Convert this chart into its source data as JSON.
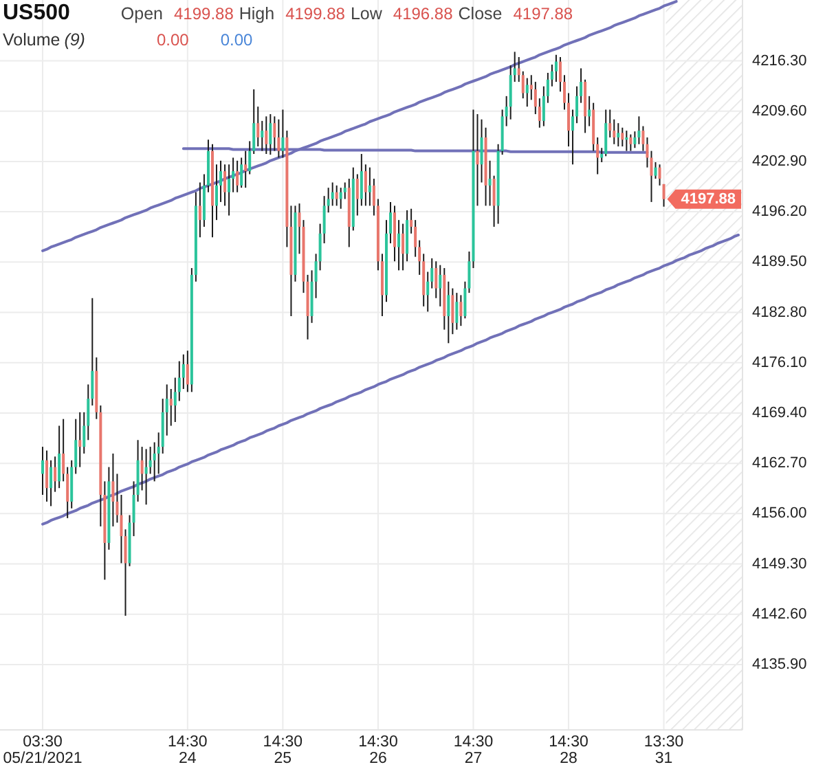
{
  "chart_data": {
    "type": "candlestick",
    "title": "US500",
    "annotations": [
      "Open",
      "4199.88",
      "High",
      "4199.88",
      "Low",
      "4196.88",
      "Close",
      "4197.88",
      "Volume",
      "(9)",
      "0.00",
      "0.00",
      "4197.88"
    ],
    "categories": [
      "03:30\n05/21/2021",
      null,
      null,
      null,
      null,
      null,
      null,
      null,
      null,
      null,
      null,
      null,
      null,
      null,
      null,
      null,
      null,
      null,
      null,
      null,
      null,
      null,
      null,
      null,
      null,
      null,
      null,
      null,
      null,
      null,
      null,
      null,
      null,
      null,
      null,
      "14:30\n24",
      null,
      null,
      null,
      null,
      null,
      null,
      null,
      null,
      null,
      null,
      null,
      null,
      null,
      null,
      null,
      null,
      null,
      null,
      null,
      null,
      null,
      null,
      "14:30\n25",
      null,
      null,
      null,
      null,
      null,
      null,
      null,
      null,
      null,
      null,
      null,
      null,
      null,
      null,
      null,
      null,
      null,
      null,
      null,
      null,
      null,
      null,
      "14:30\n26",
      null,
      null,
      null,
      null,
      null,
      null,
      null,
      null,
      null,
      null,
      null,
      null,
      null,
      null,
      null,
      null,
      null,
      null,
      null,
      null,
      null,
      null,
      "14:30\n27",
      null,
      null,
      null,
      null,
      null,
      null,
      null,
      null,
      null,
      null,
      null,
      null,
      null,
      null,
      null,
      null,
      null,
      null,
      null,
      null,
      null,
      null,
      "14:30\n28",
      null,
      null,
      null,
      null,
      null,
      null,
      null,
      null,
      null,
      null,
      null,
      null,
      null,
      null,
      null,
      null,
      null,
      null,
      null,
      null,
      null,
      null,
      "13:30\n31",
      null,
      null,
      null,
      null,
      null,
      null,
      null,
      null,
      null,
      null,
      null,
      null,
      null,
      null,
      null,
      null,
      null,
      null
    ],
    "ohlc": [
      [
        4161.3,
        4164.9,
        4158.5,
        4163.1
      ],
      [
        4163.1,
        4164.4,
        4157.6,
        4159.4
      ],
      [
        4159.4,
        4163.1,
        4157.0,
        4162.2
      ],
      [
        4162.2,
        4163.6,
        4158.9,
        4160.3
      ],
      [
        4160.3,
        4167.7,
        4159.4,
        4164.0
      ],
      [
        4164.0,
        4168.6,
        4160.3,
        4161.3
      ],
      [
        4161.3,
        4162.2,
        4155.4,
        4157.6
      ],
      [
        4157.6,
        4163.1,
        4156.7,
        4162.2
      ],
      [
        4162.2,
        4168.6,
        4161.3,
        4165.8
      ],
      [
        4165.8,
        4169.5,
        4162.2,
        4164.9
      ],
      [
        4164.9,
        4169.5,
        4164.0,
        4167.7
      ],
      [
        4167.7,
        4173.2,
        4165.8,
        4171.3
      ],
      [
        4171.3,
        4184.7,
        4170.4,
        4175.0
      ],
      [
        4175.0,
        4176.8,
        4168.6,
        4169.5
      ],
      [
        4169.5,
        4170.4,
        4154.3,
        4158.5
      ],
      [
        4158.5,
        4160.3,
        4147.2,
        4152.1
      ],
      [
        4152.1,
        4162.2,
        4151.2,
        4160.3
      ],
      [
        4160.3,
        4164.0,
        4154.3,
        4157.6
      ],
      [
        4157.6,
        4161.3,
        4154.8,
        4155.8
      ],
      [
        4155.8,
        4158.5,
        4149.4,
        4153.0
      ],
      [
        4153.0,
        4153.9,
        4142.4,
        4149.4
      ],
      [
        4149.4,
        4155.8,
        4149.0,
        4154.8
      ],
      [
        4154.8,
        4160.3,
        4153.0,
        4158.5
      ],
      [
        4158.5,
        4165.8,
        4157.6,
        4163.1
      ],
      [
        4163.1,
        4164.9,
        4159.1,
        4161.3
      ],
      [
        4161.3,
        4164.6,
        4157.2,
        4162.2
      ],
      [
        4162.2,
        4164.9,
        4161.3,
        4163.1
      ],
      [
        4163.1,
        4165.5,
        4160.3,
        4164.0
      ],
      [
        4164.0,
        4166.8,
        4161.3,
        4164.9
      ],
      [
        4164.9,
        4171.3,
        4164.0,
        4169.5
      ],
      [
        4169.5,
        4173.2,
        4166.4,
        4171.3
      ],
      [
        4171.3,
        4172.6,
        4167.7,
        4170.4
      ],
      [
        4170.4,
        4174.1,
        4168.2,
        4172.2
      ],
      [
        4172.2,
        4176.3,
        4171.0,
        4174.1
      ],
      [
        4174.1,
        4177.2,
        4172.6,
        4175.9
      ],
      [
        4175.9,
        4177.7,
        4172.2,
        4173.2
      ],
      [
        4173.2,
        4188.7,
        4172.2,
        4187.8
      ],
      [
        4187.8,
        4198.8,
        4186.9,
        4197.0
      ],
      [
        4197.0,
        4200.1,
        4192.8,
        4195.1
      ],
      [
        4195.1,
        4201.2,
        4194.2,
        4199.7
      ],
      [
        4199.7,
        4205.8,
        4198.8,
        4204.3
      ],
      [
        4204.3,
        4205.2,
        4192.8,
        4197.0
      ],
      [
        4197.0,
        4202.5,
        4195.1,
        4199.7
      ],
      [
        4199.7,
        4203.0,
        4197.5,
        4201.6
      ],
      [
        4201.6,
        4202.5,
        4197.0,
        4198.8
      ],
      [
        4198.8,
        4202.5,
        4195.7,
        4200.6
      ],
      [
        4200.6,
        4203.4,
        4198.8,
        4201.6
      ],
      [
        4201.6,
        4203.0,
        4198.8,
        4199.7
      ],
      [
        4199.7,
        4203.4,
        4199.4,
        4202.5
      ],
      [
        4202.5,
        4204.3,
        4199.4,
        4201.6
      ],
      [
        4201.6,
        4205.6,
        4201.2,
        4204.3
      ],
      [
        4204.3,
        4212.5,
        4203.9,
        4208.0
      ],
      [
        4208.0,
        4210.2,
        4204.9,
        4206.1
      ],
      [
        4206.1,
        4208.3,
        4204.3,
        4207.0
      ],
      [
        4207.0,
        4208.9,
        4203.9,
        4205.2
      ],
      [
        4205.2,
        4209.2,
        4203.8,
        4208.0
      ],
      [
        4208.0,
        4208.9,
        4204.3,
        4206.1
      ],
      [
        4206.1,
        4208.5,
        4203.4,
        4204.3
      ],
      [
        4204.3,
        4209.8,
        4203.4,
        4206.1
      ],
      [
        4206.1,
        4207.0,
        4191.5,
        4194.2
      ],
      [
        4194.2,
        4197.0,
        4182.3,
        4187.8
      ],
      [
        4187.8,
        4197.0,
        4186.9,
        4196.1
      ],
      [
        4196.1,
        4197.3,
        4190.6,
        4194.2
      ],
      [
        4194.2,
        4195.1,
        4185.4,
        4186.9
      ],
      [
        4186.9,
        4187.8,
        4179.2,
        4182.3
      ],
      [
        4182.3,
        4188.4,
        4181.4,
        4186.9
      ],
      [
        4186.9,
        4190.6,
        4184.7,
        4189.6
      ],
      [
        4189.6,
        4194.6,
        4188.4,
        4193.3
      ],
      [
        4193.3,
        4198.3,
        4192.0,
        4197.0
      ],
      [
        4197.0,
        4199.4,
        4196.1,
        4197.9
      ],
      [
        4197.9,
        4200.1,
        4197.0,
        4198.8
      ],
      [
        4198.8,
        4199.7,
        4197.0,
        4197.9
      ],
      [
        4197.9,
        4199.4,
        4196.6,
        4198.8
      ],
      [
        4198.8,
        4200.1,
        4197.9,
        4199.4
      ],
      [
        4199.4,
        4200.6,
        4191.5,
        4194.2
      ],
      [
        4194.2,
        4202.1,
        4193.7,
        4200.6
      ],
      [
        4200.6,
        4201.2,
        4195.7,
        4197.9
      ],
      [
        4197.9,
        4203.9,
        4197.0,
        4201.6
      ],
      [
        4201.6,
        4202.5,
        4197.0,
        4198.8
      ],
      [
        4198.8,
        4202.1,
        4197.0,
        4199.7
      ],
      [
        4199.7,
        4200.6,
        4195.7,
        4197.0
      ],
      [
        4197.0,
        4197.9,
        4188.4,
        4189.6
      ],
      [
        4189.6,
        4190.6,
        4182.3,
        4185.1
      ],
      [
        4185.1,
        4195.1,
        4184.2,
        4193.3
      ],
      [
        4193.3,
        4197.5,
        4192.0,
        4196.1
      ],
      [
        4196.1,
        4197.0,
        4189.6,
        4191.5
      ],
      [
        4191.5,
        4195.1,
        4188.4,
        4193.3
      ],
      [
        4193.3,
        4194.6,
        4188.4,
        4190.6
      ],
      [
        4190.6,
        4196.4,
        4189.6,
        4195.1
      ],
      [
        4195.1,
        4196.6,
        4193.3,
        4194.2
      ],
      [
        4194.2,
        4195.1,
        4190.2,
        4191.5
      ],
      [
        4191.5,
        4192.4,
        4187.8,
        4189.6
      ],
      [
        4189.6,
        4190.6,
        4183.6,
        4185.1
      ],
      [
        4185.1,
        4188.2,
        4182.9,
        4186.9
      ],
      [
        4186.9,
        4190.0,
        4186.0,
        4188.7
      ],
      [
        4188.7,
        4189.6,
        4184.7,
        4186.0
      ],
      [
        4186.0,
        4189.1,
        4183.6,
        4187.8
      ],
      [
        4187.8,
        4188.7,
        4180.5,
        4182.3
      ],
      [
        4182.3,
        4186.9,
        4178.7,
        4185.1
      ],
      [
        4185.1,
        4186.0,
        4179.9,
        4181.4
      ],
      [
        4181.4,
        4185.4,
        4180.5,
        4184.2
      ],
      [
        4184.2,
        4185.1,
        4181.0,
        4182.3
      ],
      [
        4182.3,
        4186.9,
        4182.0,
        4186.0
      ],
      [
        4186.0,
        4190.9,
        4185.4,
        4189.6
      ],
      [
        4189.6,
        4209.8,
        4188.7,
        4204.3
      ],
      [
        4204.3,
        4209.2,
        4197.0,
        4202.5
      ],
      [
        4202.5,
        4208.5,
        4200.1,
        4206.1
      ],
      [
        4206.1,
        4207.4,
        4197.0,
        4199.7
      ],
      [
        4199.7,
        4203.0,
        4197.0,
        4200.6
      ],
      [
        4200.6,
        4201.0,
        4194.2,
        4197.0
      ],
      [
        4197.0,
        4205.2,
        4194.6,
        4204.3
      ],
      [
        4204.3,
        4209.8,
        4203.8,
        4208.9
      ],
      [
        4208.9,
        4211.6,
        4207.6,
        4210.2
      ],
      [
        4210.2,
        4215.7,
        4208.5,
        4214.4
      ],
      [
        4214.4,
        4217.5,
        4213.5,
        4215.3
      ],
      [
        4215.3,
        4216.8,
        4213.5,
        4214.4
      ],
      [
        4214.4,
        4214.9,
        4211.3,
        4212.0
      ],
      [
        4212.0,
        4214.0,
        4210.2,
        4213.1
      ],
      [
        4213.1,
        4214.4,
        4211.1,
        4212.5
      ],
      [
        4212.5,
        4213.5,
        4209.2,
        4210.2
      ],
      [
        4210.2,
        4211.3,
        4207.4,
        4208.3
      ],
      [
        4208.3,
        4212.9,
        4207.6,
        4211.6
      ],
      [
        4211.6,
        4214.7,
        4210.7,
        4213.8
      ],
      [
        4213.8,
        4215.8,
        4212.9,
        4214.9
      ],
      [
        4214.9,
        4217.1,
        4213.5,
        4216.2
      ],
      [
        4216.2,
        4216.8,
        4212.2,
        4213.5
      ],
      [
        4213.5,
        4214.4,
        4209.8,
        4210.7
      ],
      [
        4210.7,
        4212.0,
        4204.9,
        4207.0
      ],
      [
        4207.0,
        4209.8,
        4202.5,
        4208.9
      ],
      [
        4208.9,
        4212.9,
        4208.0,
        4211.6
      ],
      [
        4211.6,
        4215.3,
        4210.7,
        4213.5
      ],
      [
        4213.5,
        4213.8,
        4206.7,
        4208.9
      ],
      [
        4208.9,
        4211.6,
        4207.6,
        4209.8
      ],
      [
        4209.8,
        4210.7,
        4204.3,
        4205.2
      ],
      [
        4205.2,
        4206.1,
        4201.2,
        4203.4
      ],
      [
        4203.4,
        4204.7,
        4202.8,
        4203.9
      ],
      [
        4203.9,
        4209.8,
        4203.6,
        4208.0
      ],
      [
        4208.0,
        4209.8,
        4206.1,
        4207.0
      ],
      [
        4207.0,
        4208.5,
        4205.2,
        4206.1
      ],
      [
        4206.1,
        4208.0,
        4204.9,
        4206.7
      ],
      [
        4206.7,
        4207.4,
        4204.9,
        4205.8
      ],
      [
        4205.8,
        4207.0,
        4204.3,
        4206.1
      ],
      [
        4206.1,
        4206.5,
        4204.3,
        4205.2
      ],
      [
        4205.2,
        4206.9,
        4204.7,
        4206.1
      ],
      [
        4206.1,
        4208.9,
        4205.2,
        4207.0
      ],
      [
        4207.0,
        4207.6,
        4204.3,
        4205.2
      ],
      [
        4205.2,
        4206.1,
        4202.1,
        4203.4
      ],
      [
        4203.4,
        4204.3,
        4197.5,
        4201.0
      ],
      [
        4201.0,
        4202.8,
        4200.6,
        4202.1
      ],
      [
        4202.1,
        4202.5,
        4199.7,
        4200.6
      ],
      [
        4199.88,
        4199.88,
        4196.88,
        4197.88
      ],
      null,
      null,
      null,
      null,
      null,
      null,
      null,
      null,
      null,
      null,
      null,
      null,
      null,
      null,
      null,
      null,
      null,
      null
    ],
    "series": [
      {
        "type": "line",
        "color": "#7171b8",
        "values": [
          4191.0,
          4191.2,
          4191.5,
          4191.7,
          4191.9,
          4192.1,
          4192.3,
          4192.5,
          4192.8,
          4193.0,
          4193.2,
          4193.4,
          4193.6,
          4193.8,
          4194.1,
          4194.3,
          4194.5,
          4194.7,
          4194.9,
          4195.1,
          4195.4,
          4195.6,
          4195.8,
          4196.0,
          4196.2,
          4196.4,
          4196.7,
          4196.9,
          4197.1,
          4197.3,
          4197.5,
          4197.7,
          4198.0,
          4198.2,
          4198.4,
          4198.6,
          4198.8,
          4199.0,
          4199.3,
          4199.5,
          4199.7,
          4199.9,
          4200.1,
          4200.3,
          4200.6,
          4200.8,
          4201.0,
          4201.2,
          4201.4,
          4201.7,
          4201.9,
          4202.1,
          4202.3,
          4202.5,
          4202.7,
          4203.0,
          4203.2,
          4203.4,
          4203.6,
          4203.8,
          4204.0,
          4204.3,
          4204.5,
          4204.7,
          4204.9,
          4205.1,
          4205.3,
          4205.6,
          4205.8,
          4206.0,
          4206.2,
          4206.4,
          4206.6,
          4206.9,
          4207.1,
          4207.3,
          4207.5,
          4207.7,
          4207.9,
          4208.2,
          4208.4,
          4208.6,
          4208.8,
          4209.0,
          4209.2,
          4209.5,
          4209.7,
          4209.9,
          4210.1,
          4210.3,
          4210.5,
          4210.8,
          4211.0,
          4211.2,
          4211.4,
          4211.6,
          4211.8,
          4212.1,
          4212.3,
          4212.5,
          4212.7,
          4212.9,
          4213.2,
          4213.4,
          4213.6,
          4213.8,
          4214.0,
          4214.2,
          4214.5,
          4214.7,
          4214.9,
          4215.1,
          4215.3,
          4215.5,
          4215.8,
          4216.0,
          4216.2,
          4216.4,
          4216.6,
          4216.8,
          4217.1,
          4217.3,
          4217.5,
          4217.7,
          4217.9,
          4218.1,
          4218.4,
          4218.6,
          4218.8,
          4219.0,
          4219.2,
          4219.4,
          4219.7,
          4219.9,
          4220.1,
          4220.3,
          4220.5,
          4220.7,
          4221.0,
          4221.2,
          4221.4,
          4221.6,
          4221.8,
          4222.0,
          4222.3,
          4222.5,
          4222.7,
          4222.9,
          4223.1,
          4223.3,
          4223.6,
          4223.8,
          4224.0,
          4224.2,
          null,
          null,
          null,
          null,
          null,
          null,
          null,
          null,
          null,
          null,
          null,
          null,
          null,
          null,
          null
        ]
      },
      {
        "type": "line",
        "color": "#7171b8",
        "values": [
          4154.6,
          4154.8,
          4155.1,
          4155.3,
          4155.5,
          4155.7,
          4156.0,
          4156.2,
          4156.4,
          4156.7,
          4156.9,
          4157.1,
          4157.4,
          4157.6,
          4157.8,
          4158.0,
          4158.3,
          4158.5,
          4158.7,
          4159.0,
          4159.2,
          4159.4,
          4159.6,
          4159.9,
          4160.1,
          4160.3,
          4160.6,
          4160.8,
          4161.0,
          4161.2,
          4161.5,
          4161.7,
          4161.9,
          4162.2,
          4162.4,
          4162.6,
          4162.9,
          4163.1,
          4163.3,
          4163.5,
          4163.8,
          4164.0,
          4164.2,
          4164.5,
          4164.7,
          4164.9,
          4165.1,
          4165.4,
          4165.6,
          4165.8,
          4166.1,
          4166.3,
          4166.5,
          4166.7,
          4167.0,
          4167.2,
          4167.4,
          4167.7,
          4167.9,
          4168.1,
          4168.4,
          4168.6,
          4168.8,
          4169.0,
          4169.3,
          4169.5,
          4169.7,
          4170.0,
          4170.2,
          4170.4,
          4170.6,
          4170.9,
          4171.1,
          4171.3,
          4171.6,
          4171.8,
          4172.0,
          4172.2,
          4172.5,
          4172.7,
          4172.9,
          4173.2,
          4173.4,
          4173.6,
          4173.9,
          4174.1,
          4174.3,
          4174.5,
          4174.8,
          4175.0,
          4175.2,
          4175.5,
          4175.7,
          4175.9,
          4176.1,
          4176.4,
          4176.6,
          4176.8,
          4177.1,
          4177.3,
          4177.5,
          4177.7,
          4178.0,
          4178.2,
          4178.4,
          4178.7,
          4178.9,
          4179.1,
          4179.4,
          4179.6,
          4179.8,
          4180.0,
          4180.3,
          4180.5,
          4180.7,
          4181.0,
          4181.2,
          4181.4,
          4181.6,
          4181.9,
          4182.1,
          4182.3,
          4182.6,
          4182.8,
          4183.0,
          4183.2,
          4183.5,
          4183.7,
          4183.9,
          4184.2,
          4184.4,
          4184.6,
          4184.9,
          4185.1,
          4185.3,
          4185.5,
          4185.8,
          4186.0,
          4186.2,
          4186.5,
          4186.7,
          4186.9,
          4187.1,
          4187.4,
          4187.6,
          4187.8,
          4188.1,
          4188.3,
          4188.5,
          4188.7,
          4189.0,
          4189.2,
          4189.4,
          4189.7,
          4189.9,
          4190.1,
          4190.4,
          4190.6,
          4190.8,
          4191.0,
          4191.3,
          4191.5,
          4191.7,
          4192.0,
          4192.2,
          4192.4,
          4192.6,
          4192.9,
          4193.1
        ]
      },
      {
        "type": "line",
        "color": "#7171b8",
        "values": [
          null,
          null,
          null,
          null,
          null,
          null,
          null,
          null,
          null,
          null,
          null,
          null,
          null,
          null,
          null,
          null,
          null,
          null,
          null,
          null,
          null,
          null,
          null,
          null,
          null,
          null,
          null,
          null,
          null,
          null,
          null,
          null,
          null,
          null,
          4204.6,
          4204.6,
          4204.6,
          4204.6,
          4204.6,
          4204.6,
          4204.6,
          4204.6,
          4204.6,
          4204.6,
          4204.6,
          4204.6,
          4204.5,
          4204.5,
          4204.5,
          4204.5,
          4204.5,
          4204.5,
          4204.5,
          4204.5,
          4204.5,
          4204.5,
          4204.5,
          4204.5,
          4204.5,
          4204.5,
          4204.5,
          4204.5,
          4204.5,
          4204.5,
          4204.5,
          4204.5,
          4204.5,
          4204.5,
          4204.4,
          4204.4,
          4204.4,
          4204.4,
          4204.4,
          4204.4,
          4204.4,
          4204.4,
          4204.4,
          4204.4,
          4204.4,
          4204.4,
          4204.4,
          4204.4,
          4204.4,
          4204.4,
          4204.4,
          4204.4,
          4204.4,
          4204.4,
          4204.4,
          4204.4,
          4204.3,
          4204.3,
          4204.3,
          4204.3,
          4204.3,
          4204.3,
          4204.3,
          4204.3,
          4204.3,
          4204.3,
          4204.3,
          4204.3,
          4204.3,
          4204.3,
          4204.3,
          4204.3,
          4204.3,
          4204.3,
          4204.3,
          4204.3,
          4204.3,
          4204.3,
          4204.3,
          4204.2,
          4204.2,
          4204.2,
          4204.2,
          4204.2,
          4204.2,
          4204.2,
          4204.2,
          4204.2,
          4204.2,
          4204.2,
          4204.2,
          4204.2,
          4204.2,
          4204.2,
          4204.2,
          4204.2,
          4204.2,
          4204.2,
          4204.2,
          4204.2,
          4204.2,
          4204.1,
          4204.1,
          4204.1,
          4204.1,
          4204.1,
          4204.1,
          4204.1,
          4204.1,
          4204.1,
          4204.1,
          4204.1,
          4204.1,
          null,
          null,
          null,
          null,
          null,
          null,
          null,
          null,
          null,
          null,
          null,
          null,
          null,
          null,
          null,
          null,
          null,
          null,
          null,
          null,
          null,
          null
        ]
      }
    ],
    "ylim": [
      4127.2,
      4224.4
    ],
    "yticks": [
      {
        "value": 4135.9,
        "label": "4135.90"
      },
      {
        "value": 4142.6,
        "label": "4142.60"
      },
      {
        "value": 4149.3,
        "label": "4149.30"
      },
      {
        "value": 4156,
        "label": "4156.00"
      },
      {
        "value": 4162.7,
        "label": "4162.70"
      },
      {
        "value": 4169.4,
        "label": "4169.40"
      },
      {
        "value": 4176.1,
        "label": "4176.10"
      },
      {
        "value": 4182.8,
        "label": "4182.80"
      },
      {
        "value": 4189.5,
        "label": "4189.50"
      },
      {
        "value": 4196.2,
        "label": "4196.20"
      },
      {
        "value": 4202.9,
        "label": "4202.90"
      },
      {
        "value": 4209.6,
        "label": "4209.60"
      },
      {
        "value": 4216.3,
        "label": "4216.30"
      }
    ],
    "grid": true
  }
}
